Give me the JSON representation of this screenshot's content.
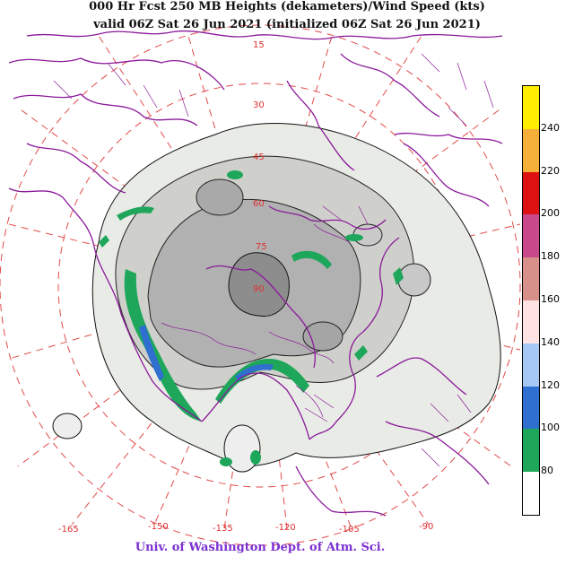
{
  "title_line1": "000 Hr Fcst 250 MB Heights (dekameters)/Wind Speed (kts)",
  "title_line2": "valid 06Z Sat 26 Jun 2021 (initialized 06Z Sat 26 Jun 2021)",
  "credit": "Univ. of Washington Dept. of Atm. Sci.",
  "legend": {
    "colors": [
      "#ffffff",
      "#1ea65a",
      "#2f6fd0",
      "#a6c8f5",
      "#fde3e3",
      "#d8908a",
      "#c84a8c",
      "#dd1111",
      "#f4b038",
      "#ffee00"
    ],
    "ticks": [
      "80",
      "100",
      "120",
      "140",
      "160",
      "180",
      "200",
      "220",
      "240"
    ]
  },
  "longitude_labels": [
    "-165",
    "-150",
    "-135",
    "-120",
    "-105",
    "-90"
  ],
  "latitude_labels": [
    "15",
    "30",
    "45",
    "60",
    "75",
    "90"
  ]
}
